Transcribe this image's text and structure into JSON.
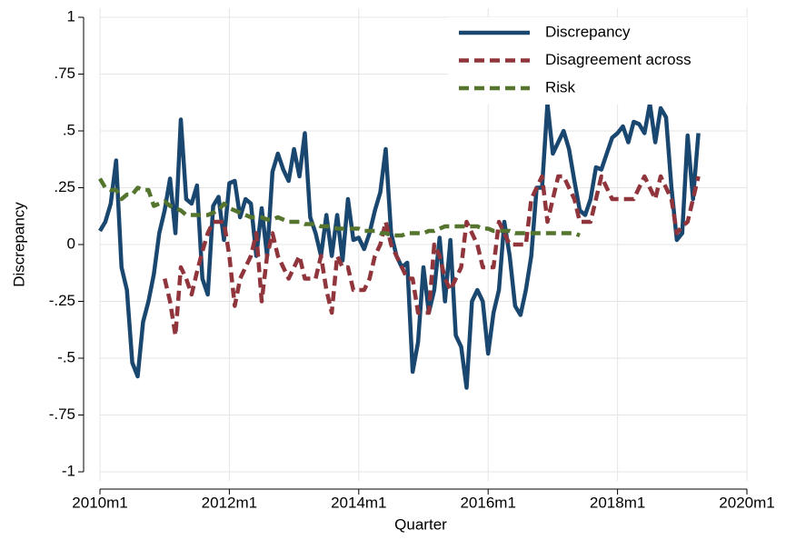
{
  "chart_data": {
    "type": "line",
    "x_label": "Quarter",
    "y_label": "Discrepancy",
    "x": [
      600,
      601,
      602,
      603,
      604,
      605,
      606,
      607,
      608,
      609,
      610,
      611,
      612,
      613,
      614,
      615,
      616,
      617,
      618,
      619,
      620,
      621,
      622,
      623,
      624,
      625,
      626,
      627,
      628,
      629,
      630,
      631,
      632,
      633,
      634,
      635,
      636,
      637,
      638,
      639,
      640,
      641,
      642,
      643,
      644,
      645,
      646,
      647,
      648,
      649,
      650,
      651,
      652,
      653,
      654,
      655,
      656,
      657,
      658,
      659,
      660,
      661,
      662,
      663,
      664,
      665,
      666,
      667,
      668,
      669,
      670,
      671,
      672,
      673,
      674,
      675,
      676,
      677,
      678,
      679,
      680,
      681,
      682,
      683,
      684,
      685,
      686,
      687,
      688,
      689,
      690,
      691,
      692,
      693,
      694,
      695,
      696,
      697,
      698,
      699,
      700,
      701,
      702,
      703,
      704,
      705,
      706,
      707,
      708,
      709,
      710,
      711
    ],
    "xlim": [
      600,
      720
    ],
    "xticks": [
      {
        "value": 600,
        "label": "2010m1"
      },
      {
        "value": 624,
        "label": "2012m1"
      },
      {
        "value": 648,
        "label": "2014m1"
      },
      {
        "value": 672,
        "label": "2016m1"
      },
      {
        "value": 696,
        "label": "2018m1"
      },
      {
        "value": 720,
        "label": "2020m1"
      }
    ],
    "ylim": [
      -1,
      1
    ],
    "yticks": [
      -1,
      {
        "value": -0.75,
        "label": "-.75"
      },
      {
        "value": -0.5,
        "label": "-.5"
      },
      {
        "value": -0.25,
        "label": "-.25"
      },
      0,
      {
        "value": 0.25,
        "label": ".25"
      },
      {
        "value": 0.5,
        "label": ".5"
      },
      {
        "value": 0.75,
        "label": ".75"
      },
      1
    ],
    "grid": true,
    "legend": "top-right",
    "series": [
      {
        "name": "Discrepancy",
        "color": "#1a476f",
        "dash": false,
        "values": [
          0.06,
          0.1,
          0.18,
          0.37,
          -0.1,
          -0.2,
          -0.52,
          -0.58,
          -0.34,
          -0.25,
          -0.13,
          0.05,
          0.15,
          0.29,
          0.05,
          0.55,
          0.2,
          0.18,
          0.26,
          -0.15,
          -0.22,
          0.17,
          0.21,
          0.02,
          0.27,
          0.28,
          0.12,
          0.2,
          0.18,
          -0.05,
          0.16,
          -0.05,
          0.32,
          0.4,
          0.33,
          0.28,
          0.42,
          0.3,
          0.49,
          0.12,
          0.05,
          -0.05,
          0.13,
          -0.05,
          0.13,
          -0.07,
          0.2,
          0.02,
          0.03,
          -0.02,
          0.05,
          0.15,
          0.23,
          0.42,
          0.05,
          -0.05,
          -0.1,
          -0.08,
          -0.56,
          -0.43,
          -0.1,
          -0.3,
          -0.2,
          0.03,
          -0.25,
          0.02,
          -0.4,
          -0.45,
          -0.63,
          -0.25,
          -0.2,
          -0.25,
          -0.48,
          -0.3,
          -0.2,
          0.1,
          -0.05,
          -0.27,
          -0.31,
          -0.2,
          -0.05,
          0.25,
          0.25,
          0.62,
          0.4,
          0.45,
          0.5,
          0.42,
          0.28,
          0.15,
          0.13,
          0.2,
          0.34,
          0.33,
          0.4,
          0.47,
          0.49,
          0.52,
          0.45,
          0.54,
          0.53,
          0.49,
          0.62,
          0.45,
          0.6,
          0.56,
          0.25,
          0.02,
          0.05,
          0.48,
          0.2,
          0.49
        ]
      },
      {
        "name": "Disagreement across",
        "color": "#90353b",
        "dash": true,
        "values": [
          null,
          null,
          null,
          null,
          null,
          null,
          null,
          null,
          null,
          null,
          null,
          null,
          -0.15,
          -0.25,
          -0.4,
          -0.1,
          -0.15,
          -0.22,
          -0.12,
          -0.03,
          0.05,
          0.1,
          0.1,
          0.1,
          -0.05,
          -0.27,
          -0.15,
          -0.1,
          -0.05,
          0.05,
          -0.25,
          -0.05,
          0.05,
          -0.05,
          -0.1,
          -0.15,
          -0.1,
          -0.05,
          -0.15,
          -0.15,
          -0.15,
          -0.05,
          -0.2,
          -0.3,
          -0.05,
          -0.1,
          -0.1,
          -0.2,
          -0.2,
          -0.2,
          -0.15,
          -0.05,
          0,
          0.1,
          0,
          -0.05,
          -0.1,
          -0.15,
          -0.15,
          -0.3,
          -0.3,
          -0.3,
          0,
          -0.05,
          -0.15,
          -0.2,
          -0.15,
          -0.1,
          0.1,
          0.05,
          0,
          -0.1,
          -0.1,
          -0.1,
          0.1,
          0.05,
          0,
          0,
          0,
          0,
          0.2,
          0.25,
          0.3,
          0.1,
          0.2,
          0.3,
          0.3,
          0.25,
          0.2,
          0.1,
          0.1,
          0.1,
          0.2,
          0.3,
          0.25,
          0.2,
          0.2,
          0.2,
          0.2,
          0.2,
          0.25,
          0.3,
          0.25,
          0.2,
          0.3,
          0.25,
          0.2,
          0.05,
          0.08,
          0.1,
          0.2,
          0.3
        ]
      },
      {
        "name": "Risk",
        "color": "#55752f",
        "dash": true,
        "values": [
          0.29,
          0.25,
          0.24,
          0.24,
          0.2,
          0.22,
          0.22,
          0.25,
          0.24,
          0.24,
          0.17,
          0.18,
          0.19,
          0.17,
          0.16,
          0.15,
          0.13,
          0.13,
          0.13,
          0.13,
          0.13,
          0.14,
          0.15,
          0.18,
          0.16,
          0.15,
          0.14,
          0.13,
          0.12,
          0.12,
          0.12,
          0.11,
          0.11,
          0.12,
          0.11,
          0.1,
          0.1,
          0.1,
          0.09,
          0.09,
          0.09,
          0.08,
          0.08,
          0.08,
          0.07,
          0.07,
          0.07,
          0.07,
          0.07,
          0.06,
          0.06,
          0.06,
          0.05,
          0.05,
          0.04,
          0.04,
          0.04,
          0.05,
          0.05,
          0.05,
          0.05,
          0.06,
          0.06,
          0.07,
          0.08,
          0.08,
          0.08,
          0.08,
          0.08,
          0.08,
          0.08,
          0.07,
          0.07,
          0.06,
          0.06,
          0.06,
          0.06,
          0.05,
          0.05,
          0.05,
          0.05,
          0.05,
          0.05,
          0.05,
          0.05,
          0.05,
          0.05,
          0.05,
          0.05,
          0.04,
          null,
          null,
          null,
          null,
          null,
          null,
          null,
          null,
          null,
          null,
          null,
          null,
          null,
          null,
          null,
          null,
          null,
          null,
          null,
          null,
          null,
          null
        ]
      }
    ]
  }
}
